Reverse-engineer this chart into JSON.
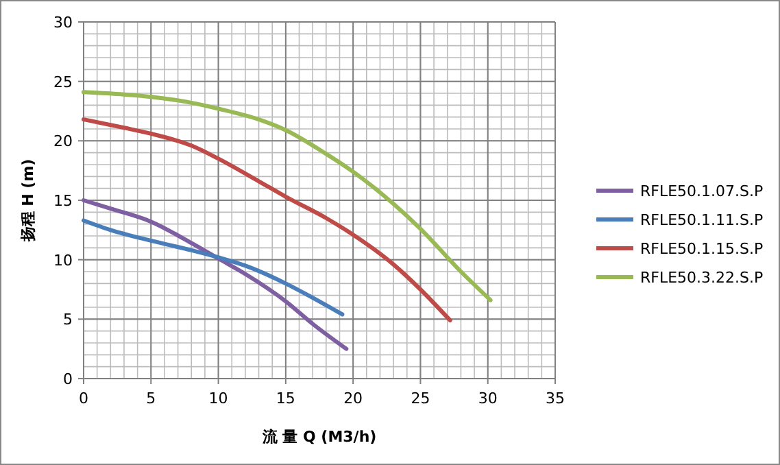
{
  "chart_data": {
    "type": "line",
    "xlabel": "流 量 Q (M3/h)",
    "ylabel": "扬程 H (m)",
    "xlim": [
      0,
      35
    ],
    "ylim": [
      0,
      30
    ],
    "xticks": [
      0,
      5,
      10,
      15,
      20,
      25,
      30,
      35
    ],
    "yticks": [
      0,
      5,
      10,
      15,
      20,
      25,
      30
    ],
    "grid": true,
    "legend": "right",
    "marker": "none",
    "line_style": "solid",
    "series": [
      {
        "name": "RFLE50.1.07.S.P",
        "color": "#7e5fa1",
        "x": [
          0,
          2,
          5,
          8,
          10,
          12,
          15,
          17,
          19.5
        ],
        "values": [
          15,
          14.3,
          13.2,
          11.4,
          10.1,
          8.8,
          6.5,
          4.6,
          2.5
        ]
      },
      {
        "name": "RFLE50.1.11.S.P",
        "color": "#4a7ebb",
        "x": [
          0,
          2,
          5,
          8,
          10,
          12,
          15,
          17,
          19.2
        ],
        "values": [
          13.3,
          12.5,
          11.6,
          10.8,
          10.2,
          9.5,
          8,
          6.8,
          5.4
        ]
      },
      {
        "name": "RFLE50.1.15.S.P",
        "color": "#be4b48",
        "x": [
          0,
          3,
          5,
          8,
          10,
          13,
          15,
          18,
          20,
          23,
          25,
          27.2
        ],
        "values": [
          21.8,
          21.1,
          20.6,
          19.6,
          18.5,
          16.6,
          15.3,
          13.5,
          12.1,
          9.6,
          7.5,
          4.9
        ]
      },
      {
        "name": "RFLE50.3.22.S.P",
        "color": "#98b954",
        "x": [
          0,
          3,
          5,
          8,
          10,
          13,
          15,
          18,
          20,
          23,
          25,
          28,
          30.2
        ],
        "values": [
          24.1,
          23.9,
          23.7,
          23.2,
          22.7,
          21.8,
          20.9,
          18.9,
          17.4,
          14.7,
          12.6,
          9,
          6.6
        ]
      }
    ]
  }
}
